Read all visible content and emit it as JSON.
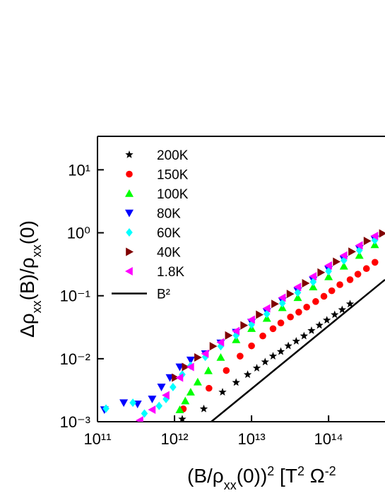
{
  "chart_data": {
    "type": "scatter",
    "log_x": true,
    "log_y": true,
    "xlabel": [
      {
        "text": "(B/ρ"
      },
      {
        "text": "xx",
        "shift": "sub"
      },
      {
        "text": "(0))"
      },
      {
        "text": "2",
        "shift": "super"
      },
      {
        "text": " [T"
      },
      {
        "text": "2",
        "shift": "super"
      },
      {
        "text": " Ω"
      },
      {
        "text": "-2",
        "shift": "super"
      }
    ],
    "ylabel": [
      {
        "text": "Δρ"
      },
      {
        "text": "xx",
        "shift": "sub"
      },
      {
        "text": "(B)/ρ"
      },
      {
        "text": "xx",
        "shift": "sub"
      },
      {
        "text": "(0)"
      }
    ],
    "xlim": [
      100000000000.0,
      540000000000000.0
    ],
    "ylim": [
      0.001,
      34
    ],
    "xticks": [
      {
        "value": 100000000000.0,
        "label": "10¹¹"
      },
      {
        "value": 1000000000000.0,
        "label": "10¹²"
      },
      {
        "value": 10000000000000.0,
        "label": "10¹³"
      },
      {
        "value": 100000000000000.0,
        "label": "10¹⁴"
      }
    ],
    "yticks": [
      {
        "value": 0.001,
        "label": "10⁻³"
      },
      {
        "value": 0.01,
        "label": "10⁻²"
      },
      {
        "value": 0.1,
        "label": "10⁻¹"
      },
      {
        "value": 1,
        "label": "10⁰"
      },
      {
        "value": 10,
        "label": "10¹"
      }
    ],
    "legend": "upper left",
    "series": [
      {
        "name": "200K",
        "color": "#000000",
        "marker": "star",
        "x": [
          1260000000000.0,
          2400000000000.0,
          4200000000000.0,
          6300000000000.0,
          8900000000000.0,
          11700000000000.0,
          15000000000000.0,
          19000000000000.0,
          24000000000000.0,
          30000000000000.0,
          38000000000000.0,
          48000000000000.0,
          60000000000000.0,
          76000000000000.0,
          95000000000000.0,
          120000000000000.0,
          150000000000000.0,
          190000000000000.0
        ],
        "y": [
          0.0011,
          0.0016,
          0.00295,
          0.0042,
          0.0056,
          0.0071,
          0.0089,
          0.011,
          0.013,
          0.016,
          0.019,
          0.023,
          0.028,
          0.034,
          0.041,
          0.05,
          0.06,
          0.074
        ]
      },
      {
        "name": "150K",
        "color": "#ff0000",
        "marker": "circle",
        "x": [
          1300000000000.0,
          2800000000000.0,
          4700000000000.0,
          7100000000000.0,
          10000000000000.0,
          14000000000000.0,
          19000000000000.0,
          24000000000000.0,
          32000000000000.0,
          41000000000000.0,
          52000000000000.0,
          68000000000000.0,
          87000000000000.0,
          110000000000000.0,
          140000000000000.0,
          190000000000000.0,
          240000000000000.0,
          310000000000000.0,
          400000000000000.0
        ],
        "y": [
          0.0016,
          0.0034,
          0.0065,
          0.011,
          0.016,
          0.023,
          0.03,
          0.037,
          0.046,
          0.055,
          0.066,
          0.081,
          0.098,
          0.12,
          0.15,
          0.18,
          0.22,
          0.27,
          0.34
        ]
      },
      {
        "name": "100K",
        "color": "#00ff00",
        "marker": "triangle-up",
        "x": [
          1170000000000.0,
          1380000000000.0,
          1620000000000.0,
          2000000000000.0,
          2750000000000.0,
          3980000000000.0,
          6310000000000.0,
          10000000000000.0,
          15800000000000.0,
          25100000000000.0,
          39800000000000.0,
          63100000000000.0,
          100000000000000.0,
          158000000000000.0,
          251000000000000.0,
          398000000000000.0
        ],
        "y": [
          0.00155,
          0.00214,
          0.00295,
          0.00427,
          0.00646,
          0.0105,
          0.02,
          0.0302,
          0.0437,
          0.0646,
          0.0933,
          0.138,
          0.2,
          0.295,
          0.437,
          0.646
        ]
      },
      {
        "name": "80K",
        "color": "#0000ff",
        "marker": "triangle-down",
        "x": [
          123000000000.0,
          219000000000.0,
          331000000000.0,
          513000000000.0,
          676000000000.0,
          871000000000.0,
          1170000000000.0,
          1620000000000.0,
          2510000000000.0,
          3980000000000.0,
          6310000000000.0,
          10000000000000.0,
          15800000000000.0,
          25100000000000.0,
          39800000000000.0,
          63100000000000.0,
          100000000000000.0,
          158000000000000.0,
          251000000000000.0,
          398000000000000.0
        ],
        "y": [
          0.00155,
          0.002,
          0.00191,
          0.00229,
          0.00355,
          0.00501,
          0.00741,
          0.00955,
          0.012,
          0.0178,
          0.0263,
          0.038,
          0.0562,
          0.0832,
          0.12,
          0.178,
          0.263,
          0.38,
          0.562,
          0.794
        ]
      },
      {
        "name": "60K",
        "color": "#00ffff",
        "marker": "diamond",
        "x": [
          129000000000.0,
          288000000000.0,
          407000000000.0,
          631000000000.0,
          776000000000.0,
          955000000000.0,
          1260000000000.0,
          1620000000000.0,
          2510000000000.0,
          3980000000000.0,
          6310000000000.0,
          10000000000000.0,
          15800000000000.0,
          25100000000000.0,
          39800000000000.0,
          63100000000000.0,
          100000000000000.0,
          158000000000000.0,
          251000000000000.0,
          398000000000000.0
        ],
        "y": [
          0.00162,
          0.002,
          0.00135,
          0.00178,
          0.00229,
          0.00355,
          0.00562,
          0.00776,
          0.0107,
          0.0158,
          0.0234,
          0.0347,
          0.0513,
          0.0759,
          0.112,
          0.166,
          0.245,
          0.363,
          0.525,
          0.759
        ]
      },
      {
        "name": "40K",
        "color": "#800000",
        "marker": "triangle-right",
        "x": [
          1020000000000.0,
          1380000000000.0,
          2000000000000.0,
          3160000000000.0,
          5010000000000.0,
          7940000000000.0,
          12600000000000.0,
          20000000000000.0,
          31600000000000.0,
          50100000000000.0,
          79400000000000.0,
          126000000000000.0,
          200000000000000.0,
          316000000000000.0,
          501000000000000.0
        ],
        "y": [
          0.00501,
          0.00741,
          0.0105,
          0.0158,
          0.0234,
          0.0339,
          0.0501,
          0.0741,
          0.107,
          0.158,
          0.234,
          0.347,
          0.501,
          0.741,
          0.977
        ]
      },
      {
        "name": "1.8K",
        "color": "#ff00ff",
        "marker": "triangle-left",
        "x": [
          355000000000.0,
          513000000000.0,
          776000000000.0,
          1170000000000.0,
          1620000000000.0,
          2510000000000.0,
          3980000000000.0,
          6310000000000.0,
          10000000000000.0,
          15800000000000.0,
          25100000000000.0,
          39800000000000.0,
          63100000000000.0,
          100000000000000.0,
          158000000000000.0,
          251000000000000.0,
          398000000000000.0
        ],
        "y": [
          0.00105,
          0.00155,
          0.00263,
          0.00501,
          0.00741,
          0.012,
          0.0182,
          0.0275,
          0.0417,
          0.0631,
          0.0933,
          0.138,
          0.204,
          0.302,
          0.437,
          0.631,
          0.891
        ]
      },
      {
        "name": "B²",
        "color": "#000000",
        "marker": "line",
        "x": [
          3000000000000.0,
          540000000000000.0
        ],
        "y": [
          0.001,
          0.18
        ]
      }
    ]
  }
}
